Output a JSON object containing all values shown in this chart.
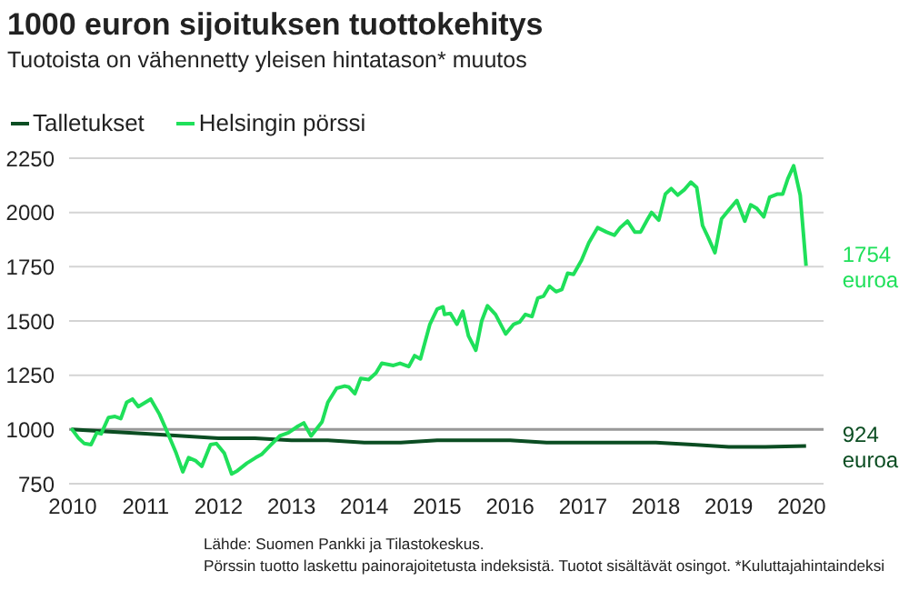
{
  "chart_data": {
    "type": "line",
    "title": "1000 euron sijoituksen tuottokehitys",
    "subtitle": "Tuotoista on vähennetty yleisen hintatason* muutos",
    "legend": "top left",
    "grid": "y",
    "marker": "none",
    "line_style": "solid",
    "xlim": [
      2009.95,
      2020.3
    ],
    "xticks": [
      2010,
      2011,
      2012,
      2013,
      2014,
      2015,
      2016,
      2017,
      2018,
      2019,
      2020
    ],
    "ylim": [
      750,
      2250
    ],
    "yticks": [
      750,
      1000,
      1250,
      1500,
      1750,
      2000,
      2250
    ],
    "ref_lines": [
      {
        "axis": "y",
        "value": 1000,
        "color": "#999999"
      }
    ],
    "series": [
      {
        "name": "Talletukset",
        "color": "#0b4d22",
        "x": [
          2009.98,
          2010.5,
          2011,
          2011.5,
          2012,
          2012.5,
          2013,
          2013.5,
          2014,
          2014.5,
          2015,
          2015.5,
          2016,
          2016.5,
          2017,
          2017.5,
          2018,
          2018.5,
          2019,
          2019.5,
          2020.06
        ],
        "values": [
          1000,
          990,
          980,
          970,
          960,
          960,
          950,
          950,
          940,
          940,
          950,
          950,
          950,
          940,
          940,
          940,
          940,
          930,
          920,
          920,
          924
        ]
      },
      {
        "name": "Helsingin pörssi",
        "color": "#1fe05a",
        "x": [
          2009.98,
          2010.08,
          2010.16,
          2010.25,
          2010.33,
          2010.39,
          2010.49,
          2010.58,
          2010.66,
          2010.74,
          2010.82,
          2010.9,
          2011.07,
          2011.19,
          2011.32,
          2011.42,
          2011.51,
          2011.59,
          2011.69,
          2011.77,
          2011.89,
          2011.97,
          2012.08,
          2012.18,
          2012.26,
          2012.39,
          2012.51,
          2012.59,
          2012.72,
          2012.84,
          2012.96,
          2013.09,
          2013.17,
          2013.27,
          2013.42,
          2013.5,
          2013.62,
          2013.73,
          2013.79,
          2013.87,
          2013.95,
          2014.06,
          2014.16,
          2014.24,
          2014.4,
          2014.49,
          2014.61,
          2014.69,
          2014.77,
          2014.9,
          2015,
          2015.08,
          2015.1,
          2015.18,
          2015.27,
          2015.35,
          2015.43,
          2015.53,
          2015.61,
          2015.69,
          2015.8,
          2015.94,
          2016.05,
          2016.13,
          2016.21,
          2016.3,
          2016.38,
          2016.46,
          2016.54,
          2016.63,
          2016.71,
          2016.79,
          2016.87,
          2016.98,
          2017.08,
          2017.2,
          2017.32,
          2017.43,
          2017.51,
          2017.61,
          2017.71,
          2017.79,
          2017.88,
          2017.94,
          2018.04,
          2018.13,
          2018.21,
          2018.3,
          2018.39,
          2018.48,
          2018.56,
          2018.64,
          2018.71,
          2018.81,
          2018.9,
          2019.01,
          2019.11,
          2019.22,
          2019.3,
          2019.38,
          2019.48,
          2019.56,
          2019.67,
          2019.74,
          2019.81,
          2019.89,
          2019.98,
          2020.06
        ],
        "values": [
          1005,
          960,
          935,
          930,
          985,
          980,
          1055,
          1060,
          1050,
          1125,
          1140,
          1105,
          1140,
          1070,
          970,
          890,
          805,
          870,
          855,
          830,
          930,
          935,
          890,
          795,
          810,
          845,
          870,
          885,
          930,
          970,
          985,
          1015,
          1030,
          970,
          1035,
          1125,
          1190,
          1200,
          1195,
          1165,
          1235,
          1230,
          1260,
          1305,
          1295,
          1305,
          1290,
          1340,
          1325,
          1485,
          1555,
          1565,
          1530,
          1535,
          1485,
          1545,
          1430,
          1365,
          1500,
          1570,
          1530,
          1440,
          1485,
          1495,
          1530,
          1520,
          1605,
          1615,
          1660,
          1635,
          1645,
          1720,
          1715,
          1780,
          1860,
          1930,
          1910,
          1895,
          1930,
          1960,
          1910,
          1910,
          1965,
          2000,
          1965,
          2085,
          2110,
          2080,
          2105,
          2140,
          2115,
          1940,
          1890,
          1815,
          1970,
          2015,
          2055,
          1960,
          2035,
          2020,
          1980,
          2070,
          2085,
          2085,
          2155,
          2215,
          2080,
          1754
        ]
      }
    ],
    "annotations": [
      {
        "text": "924 euroa",
        "x": 2020.06,
        "y": 924
      },
      {
        "text": "1754 euroa",
        "x": 2020.06,
        "y": 1754
      },
      "Lähde: Suomen Pankki ja Tilastokeskus.",
      "Pörssin tuotto laskettu painorajoitetusta indeksistä. Tuotot sisältävät osingot. *Kuluttajahintaindeksi"
    ]
  }
}
